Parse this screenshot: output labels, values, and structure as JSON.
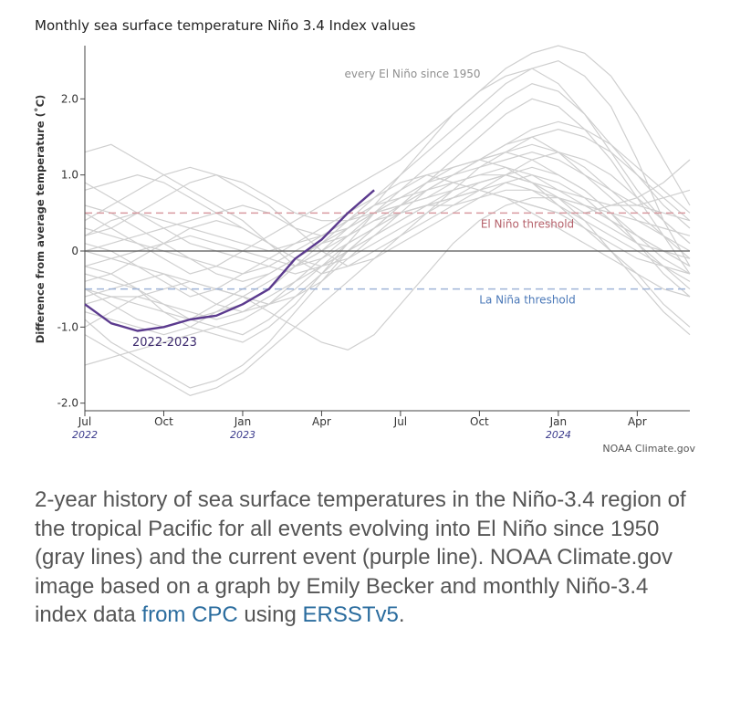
{
  "chart_data": {
    "type": "line",
    "title": "Monthly sea surface temperature Niño 3.4 Index values",
    "ylabel": "Difference from average temperature (˚C)",
    "xlabel": "",
    "ylim": [
      -2.1,
      2.7
    ],
    "xlim": [
      0,
      23
    ],
    "y_ticks": [
      {
        "value": 2.0,
        "label": "2.0"
      },
      {
        "value": 1.0,
        "label": "1.0"
      },
      {
        "value": 0,
        "label": "0"
      },
      {
        "value": -1.0,
        "label": "-1.0"
      },
      {
        "value": -2.0,
        "label": "-2.0"
      }
    ],
    "x_ticks": [
      {
        "value": 0,
        "label": "Jul",
        "year": "2022"
      },
      {
        "value": 3,
        "label": "Oct",
        "year": ""
      },
      {
        "value": 6,
        "label": "Jan",
        "year": "2023"
      },
      {
        "value": 9,
        "label": "Apr",
        "year": ""
      },
      {
        "value": 12,
        "label": "Jul",
        "year": ""
      },
      {
        "value": 15,
        "label": "Oct",
        "year": ""
      },
      {
        "value": 18,
        "label": "Jan",
        "year": "2024"
      },
      {
        "value": 21,
        "label": "Apr",
        "year": ""
      }
    ],
    "grid": false,
    "thresholds": [
      {
        "label": "El Niño threshold",
        "value": 0.5,
        "color": "#d89aa0",
        "text_color": "#b5606a"
      },
      {
        "label": "La Niña threshold",
        "value": -0.5,
        "color": "#9fb4d8",
        "text_color": "#4a78b8"
      }
    ],
    "series_label_gray": "every El Niño since 1950",
    "series_label_current": "2022-2023",
    "current": {
      "x": [
        0,
        1,
        2,
        3,
        4,
        5,
        6,
        7,
        8,
        9,
        10,
        11
      ],
      "values": [
        -0.7,
        -0.95,
        -1.05,
        -1.0,
        -0.9,
        -0.85,
        -0.7,
        -0.5,
        -0.1,
        0.15,
        0.5,
        0.8
      ],
      "color": "#5b3a8e"
    },
    "gray_color": "#cfcfcf",
    "gray_series": [
      {
        "values": [
          -0.5,
          -0.6,
          -0.7,
          -0.8,
          -0.9,
          -0.8,
          -0.7,
          -0.5,
          -0.2,
          0.1,
          0.4,
          0.7,
          1.0,
          1.3,
          1.6,
          1.9,
          2.2,
          2.4,
          2.5,
          2.3,
          1.9,
          1.2,
          0.4,
          -0.2
        ]
      },
      {
        "values": [
          1.3,
          1.4,
          1.2,
          1.0,
          0.8,
          0.6,
          0.4,
          0.1,
          -0.2,
          0.0,
          0.3,
          0.6,
          1.0,
          1.4,
          1.8,
          2.1,
          2.3,
          2.4,
          2.2,
          1.8,
          1.3,
          0.8,
          0.4,
          0.1
        ]
      },
      {
        "values": [
          -0.2,
          -0.3,
          -0.5,
          -0.8,
          -1.0,
          -1.1,
          -1.2,
          -1.0,
          -0.7,
          -0.3,
          0.1,
          0.5,
          0.8,
          1.1,
          1.4,
          1.7,
          2.0,
          2.2,
          2.1,
          1.8,
          1.4,
          1.0,
          0.6,
          0.3
        ]
      },
      {
        "values": [
          0.5,
          0.3,
          0.1,
          -0.1,
          -0.3,
          -0.2,
          0.0,
          0.2,
          0.4,
          0.6,
          0.8,
          1.0,
          1.2,
          1.5,
          1.8,
          2.1,
          2.4,
          2.6,
          2.7,
          2.6,
          2.3,
          1.8,
          1.2,
          0.6
        ]
      },
      {
        "values": [
          -0.9,
          -1.2,
          -1.4,
          -1.6,
          -1.8,
          -1.7,
          -1.5,
          -1.2,
          -0.8,
          -0.4,
          0.0,
          0.3,
          0.6,
          0.8,
          1.0,
          1.2,
          1.4,
          1.5,
          1.3,
          1.0,
          0.7,
          0.4,
          0.2,
          0.0
        ]
      },
      {
        "values": [
          0.2,
          0.3,
          0.5,
          0.7,
          0.9,
          1.0,
          0.9,
          0.7,
          0.5,
          0.4,
          0.4,
          0.5,
          0.6,
          0.7,
          0.9,
          1.0,
          1.1,
          1.0,
          0.8,
          0.6,
          0.4,
          0.2,
          -0.1,
          -0.3
        ]
      },
      {
        "values": [
          -0.3,
          -0.4,
          -0.5,
          -0.7,
          -0.8,
          -0.9,
          -0.8,
          -0.6,
          -0.4,
          -0.2,
          0.1,
          0.3,
          0.5,
          0.6,
          0.8,
          0.9,
          1.0,
          1.1,
          1.0,
          0.8,
          0.5,
          0.1,
          -0.3,
          -0.6
        ]
      },
      {
        "values": [
          0.0,
          0.1,
          0.2,
          0.3,
          0.4,
          0.5,
          0.6,
          0.5,
          0.3,
          0.2,
          0.3,
          0.5,
          0.7,
          0.9,
          1.1,
          1.2,
          1.3,
          1.4,
          1.3,
          1.1,
          0.8,
          0.6,
          0.5,
          0.4
        ]
      },
      {
        "values": [
          -1.5,
          -1.4,
          -1.3,
          -1.2,
          -1.1,
          -1.0,
          -0.9,
          -0.7,
          -0.4,
          -0.1,
          0.2,
          0.5,
          0.7,
          0.9,
          1.0,
          1.1,
          1.2,
          1.3,
          1.2,
          1.0,
          0.8,
          0.5,
          0.2,
          -0.1
        ]
      },
      {
        "values": [
          0.8,
          0.9,
          1.0,
          0.9,
          0.7,
          0.5,
          0.3,
          0.1,
          -0.1,
          -0.2,
          -0.1,
          0.1,
          0.3,
          0.5,
          0.7,
          0.9,
          1.0,
          0.9,
          0.7,
          0.4,
          0.0,
          -0.4,
          -0.8,
          -1.1
        ]
      },
      {
        "values": [
          -0.6,
          -0.5,
          -0.4,
          -0.3,
          -0.5,
          -0.7,
          -0.8,
          -0.7,
          -0.5,
          -0.2,
          0.0,
          0.2,
          0.4,
          0.6,
          0.7,
          0.8,
          0.7,
          0.6,
          0.5,
          0.5,
          0.6,
          0.7,
          0.9,
          1.2
        ]
      },
      {
        "values": [
          0.3,
          0.2,
          0.1,
          0.0,
          -0.1,
          -0.2,
          -0.3,
          -0.2,
          0.0,
          0.2,
          0.4,
          0.6,
          0.8,
          1.0,
          1.1,
          1.2,
          1.1,
          0.9,
          0.6,
          0.3,
          0.0,
          -0.3,
          -0.7,
          -1.0
        ]
      },
      {
        "values": [
          -0.8,
          -0.9,
          -1.0,
          -1.1,
          -1.0,
          -0.8,
          -0.6,
          -0.4,
          -0.2,
          0.0,
          0.2,
          0.4,
          0.5,
          0.6,
          0.7,
          0.8,
          0.9,
          0.8,
          0.6,
          0.4,
          0.2,
          0.0,
          -0.2,
          -0.4
        ]
      },
      {
        "values": [
          0.1,
          0.0,
          -0.2,
          -0.4,
          -0.6,
          -0.5,
          -0.3,
          -0.1,
          0.1,
          0.3,
          0.5,
          0.7,
          0.9,
          1.0,
          0.9,
          0.8,
          0.7,
          0.6,
          0.5,
          0.3,
          0.1,
          -0.1,
          -0.2,
          -0.3
        ]
      },
      {
        "values": [
          -0.4,
          -0.3,
          -0.1,
          0.1,
          0.3,
          0.4,
          0.3,
          0.1,
          -0.1,
          -0.3,
          -0.2,
          0.0,
          0.2,
          0.5,
          0.8,
          1.1,
          1.3,
          1.5,
          1.6,
          1.5,
          1.3,
          1.0,
          0.7,
          0.4
        ]
      },
      {
        "values": [
          0.6,
          0.5,
          0.3,
          0.1,
          -0.1,
          -0.3,
          -0.4,
          -0.3,
          -0.1,
          0.1,
          0.3,
          0.5,
          0.6,
          0.7,
          0.8,
          0.9,
          1.0,
          0.9,
          0.7,
          0.5,
          0.3,
          0.1,
          0.0,
          -0.1
        ]
      },
      {
        "values": [
          -1.1,
          -1.3,
          -1.5,
          -1.7,
          -1.9,
          -1.8,
          -1.6,
          -1.3,
          -1.0,
          -0.7,
          -0.4,
          -0.1,
          0.2,
          0.4,
          0.6,
          0.8,
          1.0,
          1.2,
          1.3,
          1.2,
          1.0,
          0.7,
          0.4,
          0.1
        ]
      },
      {
        "values": [
          0.0,
          -0.1,
          -0.2,
          -0.3,
          -0.4,
          -0.5,
          -0.6,
          -0.7,
          -0.6,
          -0.4,
          -0.1,
          0.2,
          0.5,
          0.8,
          1.0,
          1.2,
          1.4,
          1.6,
          1.7,
          1.6,
          1.4,
          1.1,
          0.8,
          0.5
        ]
      },
      {
        "values": [
          -0.2,
          -0.1,
          0.0,
          0.1,
          0.2,
          0.1,
          0.0,
          -0.1,
          -0.2,
          -0.1,
          0.1,
          0.3,
          0.5,
          0.6,
          0.6,
          0.7,
          0.8,
          0.8,
          0.7,
          0.6,
          0.5,
          0.4,
          0.3,
          0.2
        ]
      },
      {
        "values": [
          0.4,
          0.6,
          0.8,
          1.0,
          1.1,
          1.0,
          0.8,
          0.6,
          0.3,
          0.0,
          -0.2,
          -0.1,
          0.1,
          0.3,
          0.5,
          0.7,
          0.9,
          1.0,
          0.9,
          0.7,
          0.4,
          0.1,
          -0.2,
          -0.5
        ]
      },
      {
        "values": [
          -0.7,
          -0.6,
          -0.6,
          -0.7,
          -0.9,
          -1.0,
          -1.1,
          -0.9,
          -0.6,
          -0.3,
          0.0,
          0.3,
          0.6,
          0.8,
          1.0,
          1.2,
          1.3,
          1.2,
          1.0,
          0.8,
          0.5,
          0.2,
          0.0,
          -0.2
        ]
      },
      {
        "values": [
          0.2,
          0.4,
          0.5,
          0.4,
          0.3,
          0.2,
          0.1,
          0.0,
          0.1,
          0.2,
          0.4,
          0.6,
          0.7,
          0.8,
          0.9,
          1.0,
          1.0,
          0.9,
          0.8,
          0.7,
          0.6,
          0.6,
          0.7,
          0.8
        ]
      },
      {
        "values": [
          -0.5,
          -0.7,
          -0.9,
          -1.0,
          -0.9,
          -0.7,
          -0.5,
          -0.3,
          -0.1,
          0.1,
          0.2,
          0.4,
          0.6,
          0.9,
          1.2,
          1.5,
          1.8,
          2.0,
          1.9,
          1.6,
          1.2,
          0.7,
          0.2,
          -0.3
        ]
      },
      {
        "values": [
          0.9,
          0.7,
          0.5,
          0.3,
          0.1,
          0.0,
          -0.1,
          -0.2,
          -0.3,
          -0.2,
          0.0,
          0.2,
          0.4,
          0.6,
          0.7,
          0.8,
          0.7,
          0.5,
          0.3,
          0.1,
          -0.1,
          -0.3,
          -0.5,
          -0.6
        ]
      },
      {
        "values": [
          -1.0,
          -0.8,
          -0.6,
          -0.5,
          -0.4,
          -0.5,
          -0.6,
          -0.8,
          -1.0,
          -1.2,
          -1.3,
          -1.1,
          -0.7,
          -0.3,
          0.1,
          0.4,
          0.6,
          0.7,
          0.7,
          0.6,
          0.4,
          0.2,
          0.0,
          -0.2
        ]
      }
    ],
    "credit": "NOAA Climate.gov"
  },
  "caption": {
    "text": "2-year history of sea surface temperatures in the Niño-3.4 region of the tropical Pacific for all events evolving into El Niño since 1950 (gray lines) and the current event (purple line). NOAA Climate.gov image based on a graph by Emily Becker and monthly Niño-3.4 index data ",
    "link1_text": "from CPC",
    "middle_text": " using ",
    "link2_text": "ERSSTv5",
    "end_text": "."
  }
}
